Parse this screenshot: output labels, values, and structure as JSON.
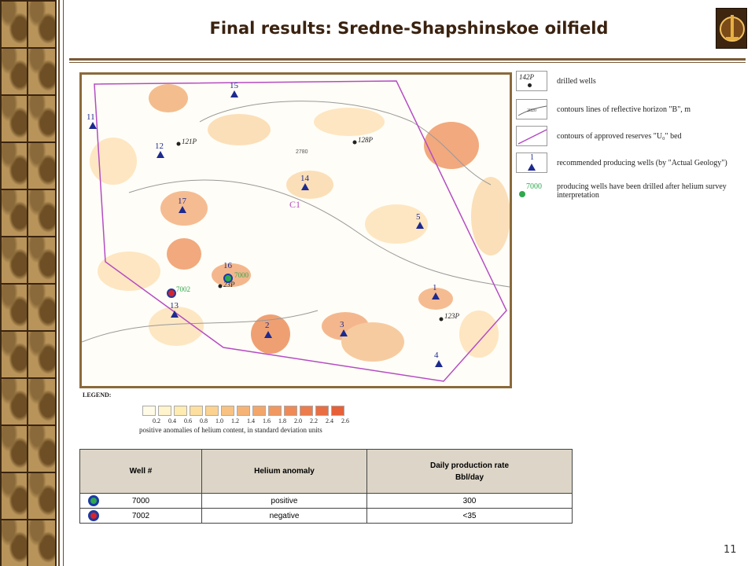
{
  "slide": {
    "title": "Final results: Sredne-Shapshinskoe oilfield",
    "page_number": "11"
  },
  "map": {
    "contour_label": "2780",
    "area_label": "C1",
    "wells_recommended": [
      "15",
      "11",
      "12",
      "14",
      "17",
      "5",
      "16",
      "1",
      "13",
      "2",
      "3",
      "4"
    ],
    "wells_drilled": [
      "121P",
      "128P",
      "23P",
      "123P",
      "142P"
    ],
    "producing_wells": [
      "7000",
      "7002"
    ]
  },
  "legend_side": {
    "items": [
      {
        "label": "drilled wells",
        "symbol_text": "142P"
      },
      {
        "label": "contours lines of reflective horizon \"B\", m",
        "symbol_text": "2820"
      },
      {
        "label": "contours of approved reserves \"U₀\" bed",
        "symbol_text": ""
      },
      {
        "label": "recommended producing wells (by \"Actual Geology\")",
        "symbol_text": "1"
      },
      {
        "label": "producing wells have been drilled after helium survey interpretation",
        "symbol_text": "7000"
      }
    ]
  },
  "scale_legend": {
    "title": "LEGEND:",
    "values": [
      "0.2",
      "0.4",
      "0.6",
      "0.8",
      "1.0",
      "1.2",
      "1.4",
      "1.6",
      "1.8",
      "2.0",
      "2.2",
      "2.4",
      "2.6"
    ],
    "colors": [
      "#fffbe6",
      "#fff4cc",
      "#ffecb0",
      "#fde0a0",
      "#fbd290",
      "#f8c282",
      "#f5b476",
      "#f3a66a",
      "#f19860",
      "#ef8a56",
      "#ec7c4c",
      "#e96e42",
      "#e66038"
    ],
    "caption": "positive anomalies of helium content, in standard deviation units"
  },
  "table": {
    "headers": [
      "Well #",
      "Helium anomaly",
      "Daily production rate",
      "Bbl/day"
    ],
    "rows": [
      {
        "well": "7000",
        "anomaly": "positive",
        "rate": "300",
        "dot_color": "#2fa84f"
      },
      {
        "well": "7002",
        "anomaly": "negative",
        "rate": "<35",
        "dot_color": "#d8232a"
      }
    ]
  }
}
